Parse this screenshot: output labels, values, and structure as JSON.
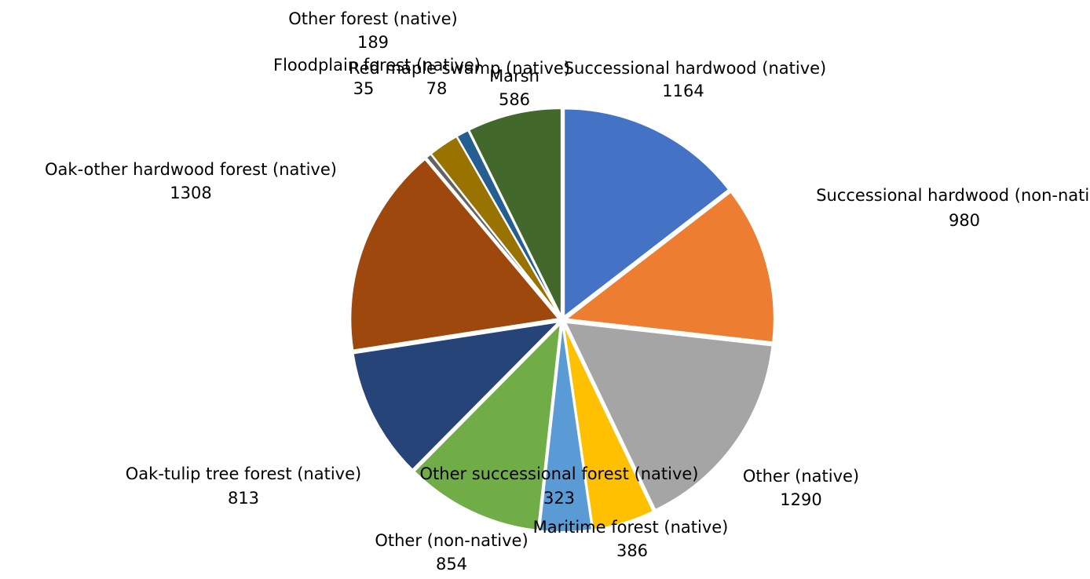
{
  "chart_data": {
    "type": "pie",
    "categories": [
      "Successional hardwood (native)",
      "Successional hardwood (non-native)",
      "Other (native)",
      "Maritime forest (native)",
      "Other successional forest (native)",
      "Other (non-native)",
      "Oak-tulip tree forest (native)",
      "Oak-other hardwood forest (native)",
      "Floodplain forest (native)",
      "Other forest (native)",
      "Red maple swamp (native)",
      "Marsh"
    ],
    "values": [
      1164,
      980,
      1290,
      386,
      323,
      854,
      813,
      1308,
      35,
      189,
      78,
      586
    ],
    "colors": [
      "#4472c4",
      "#ed7d31",
      "#a5a5a5",
      "#ffc000",
      "#5b9bd5",
      "#70ad47",
      "#264478",
      "#9e480e",
      "#636363",
      "#997300",
      "#255e91",
      "#43682b"
    ]
  }
}
